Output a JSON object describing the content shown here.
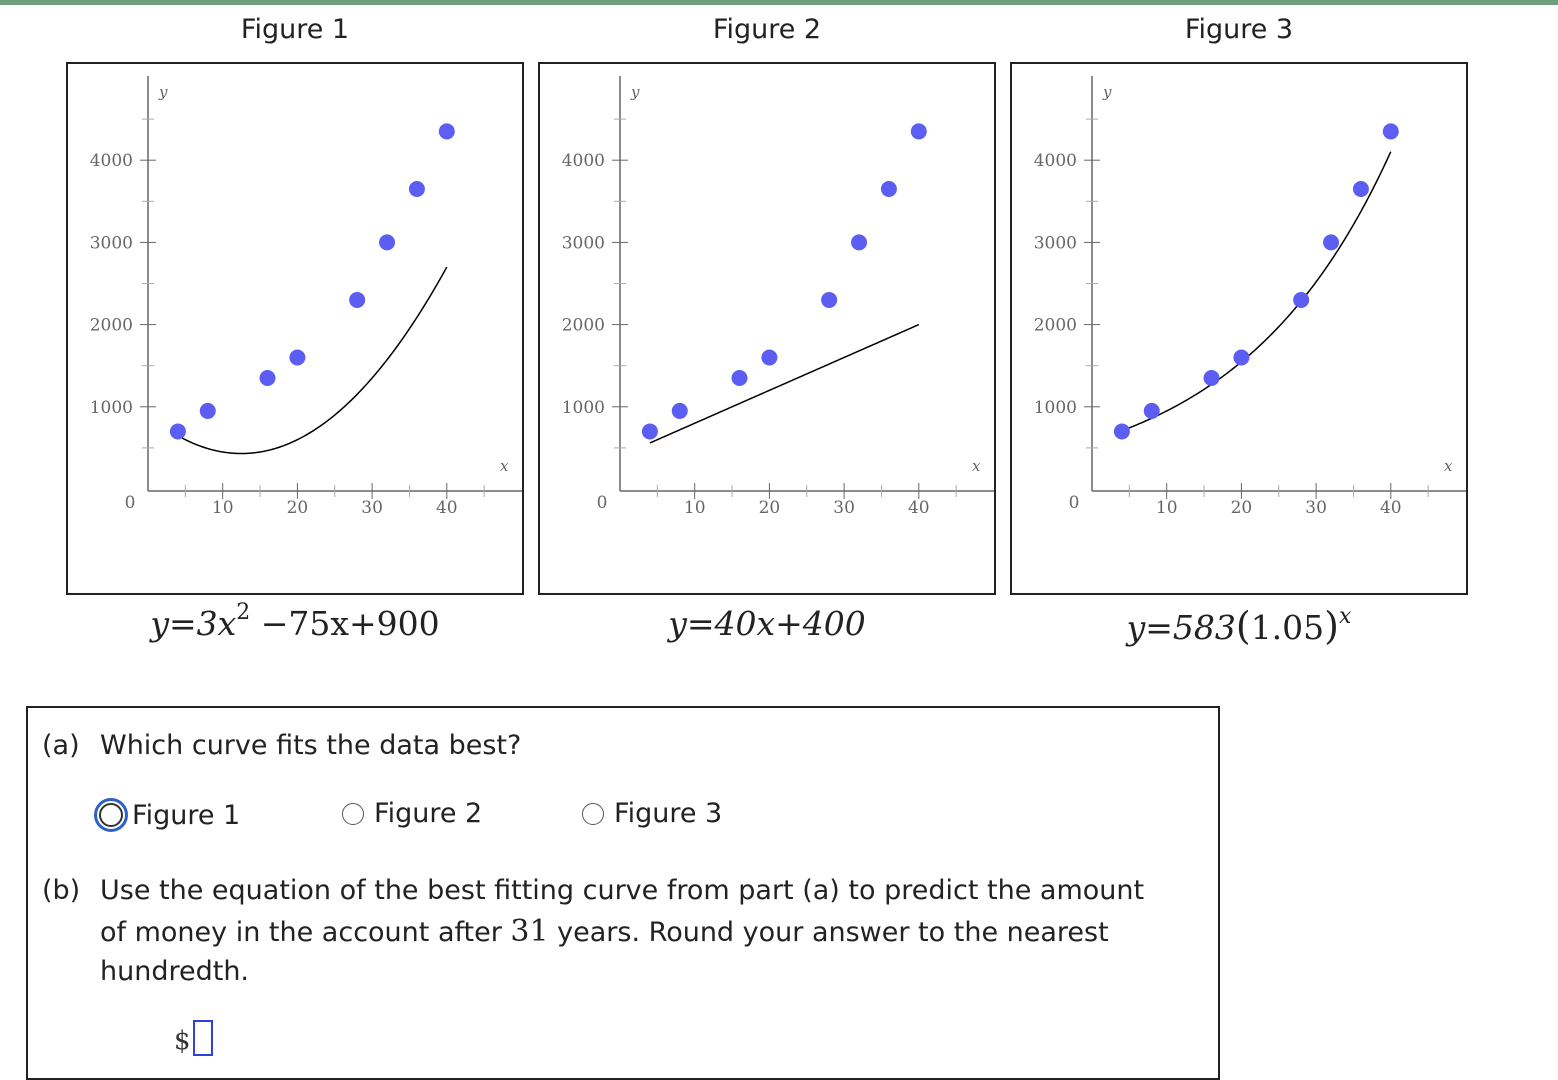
{
  "figures": [
    {
      "title": "Figure 1",
      "equation": {
        "lead": "y=3x",
        "exp": "2",
        "tail": " −75x+900"
      },
      "curve": {
        "kind": "quadratic",
        "a": 3,
        "b": -75,
        "c": 900
      }
    },
    {
      "title": "Figure 2",
      "equation": {
        "text": "y=40x+400"
      },
      "curve": {
        "kind": "linear",
        "m": 40,
        "b": 400
      }
    },
    {
      "title": "Figure 3",
      "equation": {
        "lead": "y=583",
        "lparen": "(",
        "base": "1.05",
        "rparen": ")",
        "exp": "x"
      },
      "curve": {
        "kind": "exponential",
        "a": 583,
        "b": 1.05
      }
    }
  ],
  "chart_data": [
    {
      "type": "scatter",
      "title": "Figure 1",
      "xlabel": "x",
      "ylabel": "y",
      "xlim": [
        0,
        50
      ],
      "ylim": [
        0,
        4800
      ],
      "x_ticks": [
        10,
        20,
        30,
        40
      ],
      "y_ticks": [
        1000,
        2000,
        3000,
        4000
      ],
      "origin_label": "0",
      "points": {
        "x": [
          4,
          8,
          16,
          20,
          28,
          32,
          36,
          40
        ],
        "y": [
          700,
          950,
          1350,
          1600,
          2300,
          3000,
          3650,
          4350
        ]
      },
      "fit": "y=3x^2-75x+900"
    },
    {
      "type": "scatter",
      "title": "Figure 2",
      "xlabel": "x",
      "ylabel": "y",
      "xlim": [
        0,
        50
      ],
      "ylim": [
        0,
        4800
      ],
      "x_ticks": [
        10,
        20,
        30,
        40
      ],
      "y_ticks": [
        1000,
        2000,
        3000,
        4000
      ],
      "origin_label": "0",
      "points": {
        "x": [
          4,
          8,
          16,
          20,
          28,
          32,
          36,
          40
        ],
        "y": [
          700,
          950,
          1350,
          1600,
          2300,
          3000,
          3650,
          4350
        ]
      },
      "fit": "y=40x+400"
    },
    {
      "type": "scatter",
      "title": "Figure 3",
      "xlabel": "x",
      "ylabel": "y",
      "xlim": [
        0,
        50
      ],
      "ylim": [
        0,
        4800
      ],
      "x_ticks": [
        10,
        20,
        30,
        40
      ],
      "y_ticks": [
        1000,
        2000,
        3000,
        4000
      ],
      "origin_label": "0",
      "points": {
        "x": [
          4,
          8,
          16,
          20,
          28,
          32,
          36,
          40
        ],
        "y": [
          700,
          950,
          1350,
          1600,
          2300,
          3000,
          3650,
          4350
        ]
      },
      "fit": "y=583(1.05)^x"
    }
  ],
  "colors": {
    "point": "#5b5ef0",
    "curve": "#000000",
    "axis": "#666666",
    "input_border": "#2f3fe0",
    "focus_ring": "#2a62c9"
  },
  "question": {
    "part_a": {
      "label": "(a)",
      "text": "Which curve fits the data best?",
      "options": [
        "Figure 1",
        "Figure 2",
        "Figure 3"
      ]
    },
    "part_b": {
      "label": "(b)",
      "line1": "Use the equation of the best fitting curve from part (a) to predict the amount",
      "line2_pre": "of money in the account after ",
      "years": "31",
      "line2_post": " years. Round your answer to the nearest",
      "line3": "hundredth.",
      "currency": "$",
      "answer_value": ""
    }
  }
}
